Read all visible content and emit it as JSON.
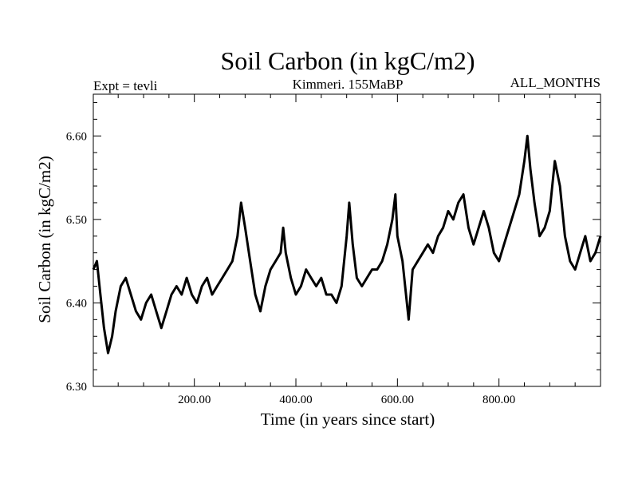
{
  "chart_data": {
    "type": "line",
    "title": "Soil Carbon (in kgC/m2)",
    "subtitle_left": "Expt = tevli",
    "subtitle_center": "Kimmeri. 155MaBP",
    "subtitle_right": "ALL_MONTHS",
    "xlabel": "Time (in years since start)",
    "ylabel": "Soil Carbon (in kgC/m2)",
    "xlim": [
      1,
      1000
    ],
    "ylim": [
      6.3,
      6.65
    ],
    "xticks": [
      200,
      400,
      600,
      800
    ],
    "xtick_labels": [
      "200.00",
      "400.00",
      "600.00",
      "800.00"
    ],
    "yticks": [
      6.3,
      6.4,
      6.5,
      6.6
    ],
    "ytick_labels": [
      "6.30",
      "6.40",
      "6.50",
      "6.60"
    ],
    "series": [
      {
        "name": "Soil Carbon",
        "color": "#000000",
        "x": [
          1,
          8,
          15,
          22,
          30,
          38,
          45,
          55,
          65,
          75,
          85,
          95,
          105,
          115,
          125,
          135,
          145,
          155,
          165,
          175,
          185,
          195,
          205,
          215,
          225,
          235,
          245,
          255,
          265,
          275,
          285,
          292,
          300,
          310,
          320,
          330,
          340,
          350,
          360,
          370,
          375,
          380,
          390,
          400,
          410,
          420,
          430,
          440,
          450,
          460,
          470,
          480,
          490,
          500,
          505,
          512,
          520,
          530,
          540,
          550,
          560,
          570,
          580,
          590,
          596,
          600,
          610,
          622,
          630,
          640,
          650,
          660,
          670,
          680,
          690,
          700,
          710,
          720,
          730,
          740,
          750,
          760,
          770,
          780,
          790,
          800,
          810,
          820,
          830,
          840,
          850,
          856,
          862,
          870,
          880,
          890,
          900,
          910,
          920,
          930,
          940,
          950,
          960,
          970,
          980,
          990,
          1000
        ],
        "values": [
          6.44,
          6.45,
          6.41,
          6.37,
          6.34,
          6.36,
          6.39,
          6.42,
          6.43,
          6.41,
          6.39,
          6.38,
          6.4,
          6.41,
          6.39,
          6.37,
          6.39,
          6.41,
          6.42,
          6.41,
          6.43,
          6.41,
          6.4,
          6.42,
          6.43,
          6.41,
          6.42,
          6.43,
          6.44,
          6.45,
          6.48,
          6.52,
          6.49,
          6.45,
          6.41,
          6.39,
          6.42,
          6.44,
          6.45,
          6.46,
          6.49,
          6.46,
          6.43,
          6.41,
          6.42,
          6.44,
          6.43,
          6.42,
          6.43,
          6.41,
          6.41,
          6.4,
          6.42,
          6.48,
          6.52,
          6.47,
          6.43,
          6.42,
          6.43,
          6.44,
          6.44,
          6.45,
          6.47,
          6.5,
          6.53,
          6.48,
          6.45,
          6.38,
          6.44,
          6.45,
          6.46,
          6.47,
          6.46,
          6.48,
          6.49,
          6.51,
          6.5,
          6.52,
          6.53,
          6.49,
          6.47,
          6.49,
          6.51,
          6.49,
          6.46,
          6.45,
          6.47,
          6.49,
          6.51,
          6.53,
          6.57,
          6.6,
          6.56,
          6.52,
          6.48,
          6.49,
          6.51,
          6.57,
          6.54,
          6.48,
          6.45,
          6.44,
          6.46,
          6.48,
          6.45,
          6.46,
          6.48
        ]
      }
    ]
  }
}
